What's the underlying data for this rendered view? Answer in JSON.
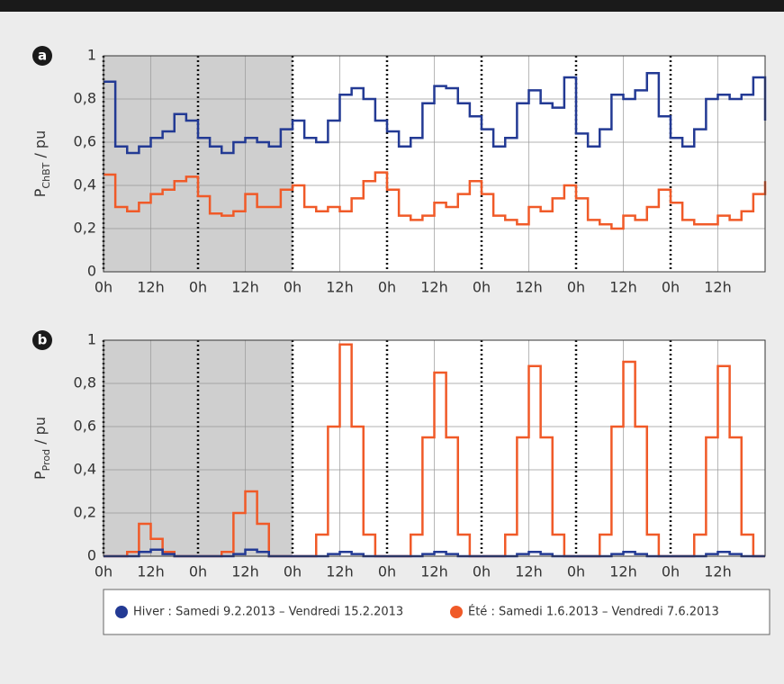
{
  "chart_data": [
    {
      "type": "line",
      "step": true,
      "panel_label": "a",
      "ylabel": {
        "main": "P",
        "sub": "ChBT",
        "unit": " / pu"
      },
      "shaded": [
        0,
        48
      ],
      "x": [
        0,
        3,
        6,
        9,
        12,
        15,
        18,
        21,
        24,
        27,
        30,
        33,
        36,
        39,
        42,
        45,
        48,
        51,
        54,
        57,
        60,
        63,
        66,
        69,
        72,
        75,
        78,
        81,
        84,
        87,
        90,
        93,
        96,
        99,
        102,
        105,
        108,
        111,
        114,
        117,
        120,
        123,
        126,
        129,
        132,
        135,
        138,
        141,
        144,
        147,
        150,
        153,
        156,
        159,
        162,
        165,
        168
      ],
      "xlim": [
        0,
        168
      ],
      "xticks": [
        {
          "value": 0,
          "label": "0h"
        },
        {
          "value": 12,
          "label": "12h"
        },
        {
          "value": 24,
          "label": "0h"
        },
        {
          "value": 36,
          "label": "12h"
        },
        {
          "value": 48,
          "label": "0h"
        },
        {
          "value": 60,
          "label": "12h"
        },
        {
          "value": 72,
          "label": "0h"
        },
        {
          "value": 84,
          "label": "12h"
        },
        {
          "value": 96,
          "label": "0h"
        },
        {
          "value": 108,
          "label": "12h"
        },
        {
          "value": 120,
          "label": "0h"
        },
        {
          "value": 132,
          "label": "12h"
        },
        {
          "value": 144,
          "label": "0h"
        },
        {
          "value": 156,
          "label": "12h"
        }
      ],
      "ylim": [
        0,
        1
      ],
      "yticks": [
        0,
        {
          "value": 0.2,
          "label": "0,2"
        },
        {
          "value": 0.4,
          "label": "0,4"
        },
        {
          "value": 0.6,
          "label": "0,6"
        },
        {
          "value": 0.8,
          "label": "0,8"
        },
        1
      ],
      "grid": true,
      "series": [
        {
          "name": "Hiver : Samedi 9.2.2013 – Vendredi 15.2.2013",
          "color": "#233a94",
          "values": [
            0.88,
            0.58,
            0.55,
            0.58,
            0.62,
            0.65,
            0.73,
            0.7,
            0.62,
            0.58,
            0.55,
            0.6,
            0.62,
            0.6,
            0.58,
            0.66,
            0.7,
            0.62,
            0.6,
            0.7,
            0.82,
            0.85,
            0.8,
            0.7,
            0.65,
            0.58,
            0.62,
            0.78,
            0.86,
            0.85,
            0.78,
            0.72,
            0.66,
            0.58,
            0.62,
            0.78,
            0.84,
            0.78,
            0.76,
            0.9,
            0.64,
            0.58,
            0.66,
            0.82,
            0.8,
            0.84,
            0.92,
            0.72,
            0.62,
            0.58,
            0.66,
            0.8,
            0.82,
            0.8,
            0.82,
            0.9,
            0.7
          ]
        },
        {
          "name": "Été : Samedi 1.6.2013 – Vendredi 7.6.2013",
          "color": "#f05a28",
          "values": [
            0.45,
            0.3,
            0.28,
            0.32,
            0.36,
            0.38,
            0.42,
            0.44,
            0.35,
            0.27,
            0.26,
            0.28,
            0.36,
            0.3,
            0.3,
            0.38,
            0.4,
            0.3,
            0.28,
            0.3,
            0.28,
            0.34,
            0.42,
            0.46,
            0.38,
            0.26,
            0.24,
            0.26,
            0.32,
            0.3,
            0.36,
            0.42,
            0.36,
            0.26,
            0.24,
            0.22,
            0.3,
            0.28,
            0.34,
            0.4,
            0.34,
            0.24,
            0.22,
            0.2,
            0.26,
            0.24,
            0.3,
            0.38,
            0.32,
            0.24,
            0.22,
            0.22,
            0.26,
            0.24,
            0.28,
            0.36,
            0.42
          ]
        }
      ]
    },
    {
      "type": "line",
      "step": true,
      "panel_label": "b",
      "ylabel": {
        "main": "P",
        "sub": "Prod",
        "unit": " / pu"
      },
      "shaded": [
        0,
        48
      ],
      "x": [
        0,
        3,
        6,
        9,
        12,
        15,
        18,
        21,
        24,
        27,
        30,
        33,
        36,
        39,
        42,
        45,
        48,
        51,
        54,
        57,
        60,
        63,
        66,
        69,
        72,
        75,
        78,
        81,
        84,
        87,
        90,
        93,
        96,
        99,
        102,
        105,
        108,
        111,
        114,
        117,
        120,
        123,
        126,
        129,
        132,
        135,
        138,
        141,
        144,
        147,
        150,
        153,
        156,
        159,
        162,
        165,
        168
      ],
      "xlim": [
        0,
        168
      ],
      "xticks": [
        {
          "value": 0,
          "label": "0h"
        },
        {
          "value": 12,
          "label": "12h"
        },
        {
          "value": 24,
          "label": "0h"
        },
        {
          "value": 36,
          "label": "12h"
        },
        {
          "value": 48,
          "label": "0h"
        },
        {
          "value": 60,
          "label": "12h"
        },
        {
          "value": 72,
          "label": "0h"
        },
        {
          "value": 84,
          "label": "12h"
        },
        {
          "value": 96,
          "label": "0h"
        },
        {
          "value": 108,
          "label": "12h"
        },
        {
          "value": 120,
          "label": "0h"
        },
        {
          "value": 132,
          "label": "12h"
        },
        {
          "value": 144,
          "label": "0h"
        },
        {
          "value": 156,
          "label": "12h"
        }
      ],
      "ylim": [
        0,
        1
      ],
      "yticks": [
        0,
        {
          "value": 0.2,
          "label": "0,2"
        },
        {
          "value": 0.4,
          "label": "0,4"
        },
        {
          "value": 0.6,
          "label": "0,6"
        },
        {
          "value": 0.8,
          "label": "0,8"
        },
        1
      ],
      "grid": true,
      "series": [
        {
          "color": "#f05a28",
          "values": [
            0,
            0,
            0.02,
            0.15,
            0.08,
            0.02,
            0,
            0,
            0,
            0,
            0.02,
            0.2,
            0.3,
            0.15,
            0,
            0,
            0,
            0,
            0.1,
            0.6,
            0.98,
            0.6,
            0.1,
            0,
            0,
            0,
            0.1,
            0.55,
            0.85,
            0.55,
            0.1,
            0,
            0,
            0,
            0.1,
            0.55,
            0.88,
            0.55,
            0.1,
            0,
            0,
            0,
            0.1,
            0.6,
            0.9,
            0.6,
            0.1,
            0,
            0,
            0,
            0.1,
            0.55,
            0.88,
            0.55,
            0.1,
            0,
            0
          ]
        },
        {
          "color": "#233a94",
          "values": [
            0,
            0,
            0,
            0.02,
            0.03,
            0.01,
            0,
            0,
            0,
            0,
            0,
            0.01,
            0.03,
            0.02,
            0,
            0,
            0,
            0,
            0,
            0.01,
            0.02,
            0.01,
            0,
            0,
            0,
            0,
            0,
            0.01,
            0.02,
            0.01,
            0,
            0,
            0,
            0,
            0,
            0.01,
            0.02,
            0.01,
            0,
            0,
            0,
            0,
            0,
            0.01,
            0.02,
            0.01,
            0,
            0,
            0,
            0,
            0,
            0.01,
            0.02,
            0.01,
            0,
            0,
            0
          ]
        }
      ]
    }
  ]
}
